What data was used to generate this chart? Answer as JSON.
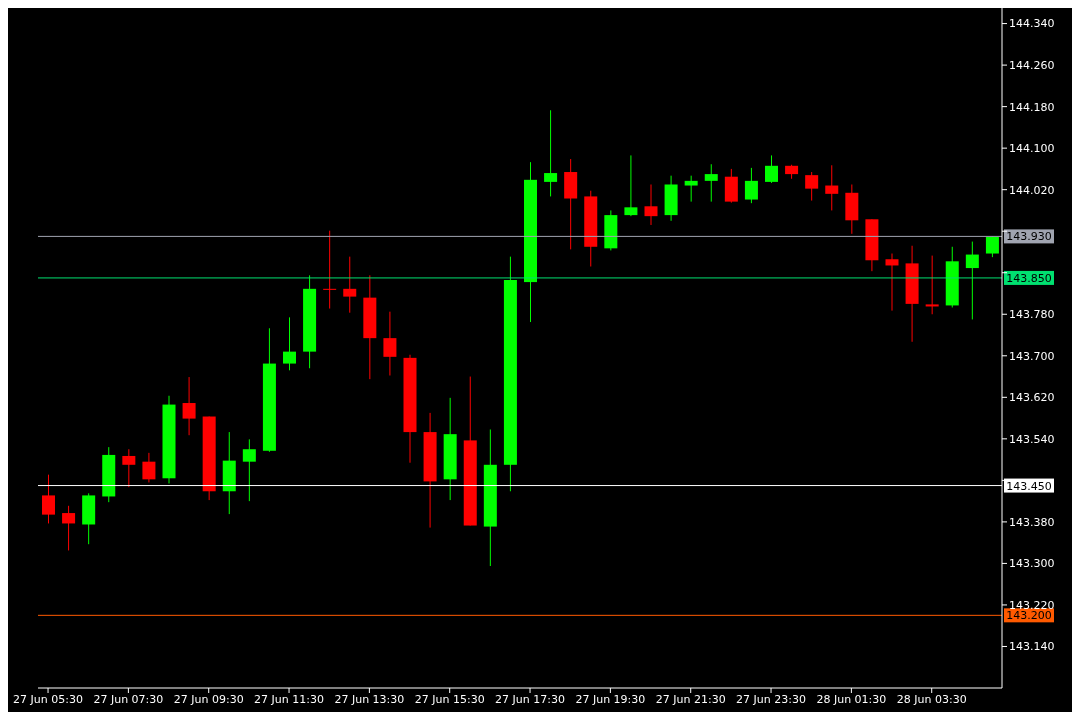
{
  "chart_data": {
    "type": "candlestick",
    "categories": [
      "27 Jun 05:30",
      null,
      null,
      null,
      "27 Jun 07:30",
      null,
      null,
      null,
      "27 Jun 09:30",
      null,
      null,
      null,
      "27 Jun 11:30",
      null,
      null,
      null,
      "27 Jun 13:30",
      null,
      null,
      null,
      "27 Jun 15:30",
      null,
      null,
      null,
      "27 Jun 17:30",
      null,
      null,
      null,
      "27 Jun 19:30",
      null,
      null,
      null,
      "27 Jun 21:30",
      null,
      null,
      null,
      "27 Jun 23:30",
      null,
      null,
      null,
      "28 Jun 01:30",
      null,
      null,
      null,
      "28 Jun 03:30",
      null,
      null,
      null
    ],
    "ohlc": [
      [
        143.431,
        143.471,
        143.377,
        143.394
      ],
      [
        143.397,
        143.411,
        143.325,
        143.377
      ],
      [
        143.375,
        143.435,
        143.337,
        143.431
      ],
      [
        143.429,
        143.524,
        143.418,
        143.509
      ],
      [
        143.507,
        143.52,
        143.447,
        143.49
      ],
      [
        143.496,
        143.513,
        143.456,
        143.462
      ],
      [
        143.464,
        143.623,
        143.454,
        143.606
      ],
      [
        143.609,
        143.659,
        143.547,
        143.579
      ],
      [
        143.583,
        143.583,
        143.422,
        143.439
      ],
      [
        143.439,
        143.553,
        143.395,
        143.498
      ],
      [
        143.496,
        143.539,
        143.42,
        143.52
      ],
      [
        143.517,
        143.753,
        143.515,
        143.685
      ],
      [
        143.685,
        143.774,
        143.672,
        143.708
      ],
      [
        143.708,
        143.855,
        143.676,
        143.829
      ],
      [
        143.829,
        143.941,
        143.791,
        143.827
      ],
      [
        143.829,
        143.891,
        143.783,
        143.814
      ],
      [
        143.812,
        143.855,
        143.655,
        143.734
      ],
      [
        143.734,
        143.785,
        143.662,
        143.698
      ],
      [
        143.696,
        143.702,
        143.494,
        143.553
      ],
      [
        143.553,
        143.59,
        143.369,
        143.458
      ],
      [
        143.462,
        143.619,
        143.422,
        143.549
      ],
      [
        143.537,
        143.66,
        143.373,
        143.373
      ],
      [
        143.371,
        143.558,
        143.295,
        143.49
      ],
      [
        143.49,
        143.891,
        143.439,
        143.846
      ],
      [
        143.842,
        144.073,
        143.765,
        144.039
      ],
      [
        144.035,
        144.173,
        144.007,
        144.052
      ],
      [
        144.054,
        144.079,
        143.905,
        144.003
      ],
      [
        144.007,
        144.018,
        143.872,
        143.91
      ],
      [
        143.907,
        143.98,
        143.903,
        143.971
      ],
      [
        143.971,
        144.086,
        143.969,
        143.986
      ],
      [
        143.988,
        144.03,
        143.952,
        143.969
      ],
      [
        143.971,
        144.047,
        143.96,
        144.03
      ],
      [
        144.028,
        144.047,
        143.997,
        144.037
      ],
      [
        144.037,
        144.069,
        143.997,
        144.05
      ],
      [
        144.045,
        144.06,
        143.995,
        143.997
      ],
      [
        144.001,
        144.062,
        143.994,
        144.037
      ],
      [
        144.035,
        144.086,
        144.033,
        144.066
      ],
      [
        144.066,
        144.068,
        144.041,
        144.05
      ],
      [
        144.048,
        144.054,
        143.999,
        144.022
      ],
      [
        144.028,
        144.067,
        143.98,
        144.012
      ],
      [
        144.014,
        144.03,
        143.935,
        143.961
      ],
      [
        143.963,
        143.963,
        143.863,
        143.884
      ],
      [
        143.886,
        143.897,
        143.787,
        143.874
      ],
      [
        143.878,
        143.912,
        143.727,
        143.8
      ],
      [
        143.799,
        143.893,
        143.78,
        143.795
      ],
      [
        143.797,
        143.91,
        143.793,
        143.882
      ],
      [
        143.869,
        143.92,
        143.77,
        143.895
      ],
      [
        143.897,
        143.93,
        143.89,
        143.929
      ]
    ],
    "colors": [
      "#ff0000",
      "#ff0000",
      "#00ff00",
      "#00ff00",
      "#ff0000",
      "#ff0000",
      "#00ff00",
      "#ff0000",
      "#ff0000",
      "#00ff00",
      "#00ff00",
      "#00ff00",
      "#00ff00",
      "#00ff00",
      "#ff0000",
      "#ff0000",
      "#ff0000",
      "#ff0000",
      "#ff0000",
      "#ff0000",
      "#00ff00",
      "#ff0000",
      "#00ff00",
      "#00ff00",
      "#00ff00",
      "#00ff00",
      "#ff0000",
      "#ff0000",
      "#00ff00",
      "#00ff00",
      "#ff0000",
      "#00ff00",
      "#00ff00",
      "#00ff00",
      "#ff0000",
      "#00ff00",
      "#00ff00",
      "#ff0000",
      "#ff0000",
      "#ff0000",
      "#ff0000",
      "#ff0000",
      "#ff0000",
      "#ff0000",
      "#ff0000",
      "#00ff00",
      "#00ff00",
      "#00ff00"
    ],
    "ylim": [
      143.06,
      144.37
    ],
    "yticks": [
      "143.140",
      "143.220",
      "143.300",
      "143.380",
      {
        "value": 143.46,
        "label": null
      },
      "143.540",
      "143.620",
      "143.700",
      "143.780",
      {
        "value": 143.86,
        "label": null
      },
      {
        "value": 143.94,
        "label": null
      },
      "144.020",
      "144.100",
      "144.180",
      "144.260",
      "144.340"
    ],
    "ref_lines": [
      {
        "axis": "y",
        "value": 143.93,
        "label": "143.930",
        "color": "#a0a4b0"
      },
      {
        "axis": "y",
        "value": 143.85,
        "label": "143.850",
        "color": "#00e070"
      },
      {
        "axis": "y",
        "value": 143.45,
        "label": "143.450",
        "color": "#ffffff"
      },
      {
        "axis": "y",
        "value": 143.2,
        "label": "143.200",
        "color": "#ff5a00"
      }
    ],
    "grid": false,
    "legend": false
  }
}
